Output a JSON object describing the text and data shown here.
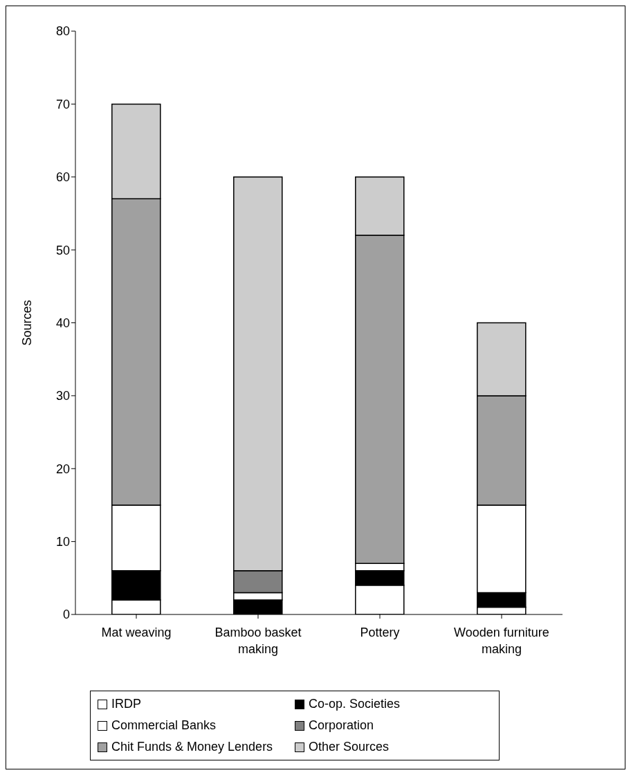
{
  "chart_data": {
    "type": "bar",
    "stacked": true,
    "ylabel": "Sources",
    "categories": [
      "Mat weaving",
      "Bamboo basket making",
      "Pottery",
      "Wooden furniture making"
    ],
    "ylim": [
      0,
      80
    ],
    "yticks": [
      0,
      10,
      20,
      30,
      40,
      50,
      60,
      70,
      80
    ],
    "grid": false,
    "legend": "bottom",
    "series": [
      {
        "name": "IRDP",
        "color": "#ffffff",
        "values": [
          2,
          0,
          4,
          1
        ]
      },
      {
        "name": "Co-op. Societies",
        "color": "#000000",
        "values": [
          4,
          2,
          2,
          2
        ]
      },
      {
        "name": "Commercial Banks",
        "color": "#ffffff",
        "values": [
          9,
          1,
          1,
          12
        ]
      },
      {
        "name": "Corporation",
        "color": "#808080",
        "values": [
          0,
          3,
          0,
          0
        ]
      },
      {
        "name": "Chit Funds & Money Lenders",
        "color": "#a0a0a0",
        "values": [
          42,
          0,
          45,
          15
        ]
      },
      {
        "name": "Other Sources",
        "color": "#cccccc",
        "values": [
          13,
          54,
          8,
          10
        ]
      }
    ]
  }
}
